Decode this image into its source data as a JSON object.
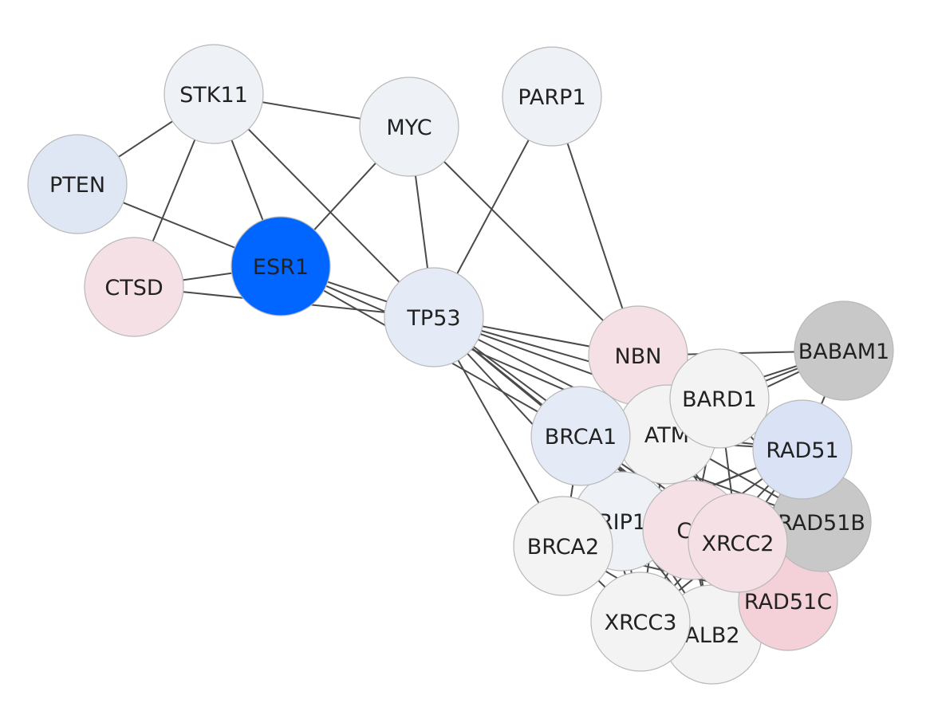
{
  "network": {
    "nodes": [
      {
        "id": "STK11",
        "label": "STK11",
        "color": "#eef1f6"
      },
      {
        "id": "MYC",
        "label": "MYC",
        "color": "#eef1f6"
      },
      {
        "id": "PARP1",
        "label": "PARP1",
        "color": "#eef1f6"
      },
      {
        "id": "PTEN",
        "label": "PTEN",
        "color": "#dfe7f5"
      },
      {
        "id": "CTSD",
        "label": "CTSD",
        "color": "#f4e0e5"
      },
      {
        "id": "ESR1",
        "label": "ESR1",
        "color": "#0066ff"
      },
      {
        "id": "TP53",
        "label": "TP53",
        "color": "#e5ebf6"
      },
      {
        "id": "PALB2",
        "label": "ALB2",
        "color": "#f3f3f4"
      },
      {
        "id": "XRCC3",
        "label": "XRCC3",
        "color": "#f3f3f4"
      },
      {
        "id": "RAD51C",
        "label": "RAD51C",
        "color": "#f4d1d9"
      },
      {
        "id": "RAD51B",
        "label": "RAD51B",
        "color": "#c8c8c8"
      },
      {
        "id": "BABAM1",
        "label": "BABAM1",
        "color": "#c8c8c8"
      },
      {
        "id": "NBN",
        "label": "NBN",
        "color": "#f4e0e5"
      },
      {
        "id": "ATM",
        "label": "ATM",
        "color": "#f3f3f4"
      },
      {
        "id": "BRIP1",
        "label": "RIP1",
        "color": "#eef1f6"
      },
      {
        "id": "CHEK2",
        "label": "CH",
        "color": "#f4e0e5"
      },
      {
        "id": "BRCA1",
        "label": "BRCA1",
        "color": "#e5ebf6"
      },
      {
        "id": "BARD1",
        "label": "BARD1",
        "color": "#f3f3f4"
      },
      {
        "id": "RAD51",
        "label": "RAD51",
        "color": "#d9e3f5"
      },
      {
        "id": "BRCA2",
        "label": "BRCA2",
        "color": "#f3f3f4"
      },
      {
        "id": "XRCC2",
        "label": "XRCC2",
        "color": "#f4e0e5"
      }
    ],
    "edges": [
      [
        "STK11",
        "PTEN"
      ],
      [
        "STK11",
        "MYC"
      ],
      [
        "STK11",
        "CTSD"
      ],
      [
        "STK11",
        "ESR1"
      ],
      [
        "STK11",
        "TP53"
      ],
      [
        "PTEN",
        "ESR1"
      ],
      [
        "MYC",
        "ESR1"
      ],
      [
        "MYC",
        "TP53"
      ],
      [
        "MYC",
        "NBN"
      ],
      [
        "PARP1",
        "TP53"
      ],
      [
        "PARP1",
        "NBN"
      ],
      [
        "CTSD",
        "ESR1"
      ],
      [
        "CTSD",
        "TP53"
      ],
      [
        "ESR1",
        "TP53"
      ],
      [
        "ESR1",
        "BRCA1"
      ],
      [
        "ESR1",
        "ATM"
      ],
      [
        "TP53",
        "NBN"
      ],
      [
        "TP53",
        "BRCA1"
      ],
      [
        "TP53",
        "ATM"
      ],
      [
        "TP53",
        "BRIP1"
      ],
      [
        "TP53",
        "CHEK2"
      ],
      [
        "TP53",
        "BRCA2"
      ],
      [
        "TP53",
        "BARD1"
      ],
      [
        "TP53",
        "RAD51"
      ],
      [
        "TP53",
        "XRCC2"
      ],
      [
        "NBN",
        "BABAM1"
      ],
      [
        "NBN",
        "ATM"
      ],
      [
        "NBN",
        "BRCA1"
      ],
      [
        "NBN",
        "BARD1"
      ],
      [
        "NBN",
        "RAD51"
      ],
      [
        "BABAM1",
        "BARD1"
      ],
      [
        "BABAM1",
        "BRCA1"
      ],
      [
        "BABAM1",
        "RAD51"
      ],
      [
        "BABAM1",
        "ATM"
      ],
      [
        "ATM",
        "BRCA1"
      ],
      [
        "ATM",
        "BARD1"
      ],
      [
        "ATM",
        "RAD51"
      ],
      [
        "ATM",
        "CHEK2"
      ],
      [
        "ATM",
        "BRIP1"
      ],
      [
        "ATM",
        "XRCC2"
      ],
      [
        "ATM",
        "RAD51B"
      ],
      [
        "ATM",
        "RAD51C"
      ],
      [
        "ATM",
        "XRCC3"
      ],
      [
        "ATM",
        "PALB2"
      ],
      [
        "BRCA1",
        "BARD1"
      ],
      [
        "BRCA1",
        "RAD51"
      ],
      [
        "BRCA1",
        "CHEK2"
      ],
      [
        "BRCA1",
        "BRIP1"
      ],
      [
        "BRCA1",
        "BRCA2"
      ],
      [
        "BRCA1",
        "PALB2"
      ],
      [
        "BRCA1",
        "XRCC3"
      ],
      [
        "BRCA1",
        "RAD51C"
      ],
      [
        "BRCA1",
        "XRCC2"
      ],
      [
        "BRCA1",
        "RAD51B"
      ],
      [
        "BARD1",
        "RAD51"
      ],
      [
        "BARD1",
        "CHEK2"
      ],
      [
        "BARD1",
        "XRCC2"
      ],
      [
        "BARD1",
        "RAD51B"
      ],
      [
        "RAD51",
        "RAD51B"
      ],
      [
        "RAD51",
        "RAD51C"
      ],
      [
        "RAD51",
        "XRCC2"
      ],
      [
        "RAD51",
        "XRCC3"
      ],
      [
        "RAD51",
        "BRCA2"
      ],
      [
        "RAD51",
        "PALB2"
      ],
      [
        "RAD51",
        "CHEK2"
      ],
      [
        "RAD51",
        "BRIP1"
      ],
      [
        "BRIP1",
        "BRCA2"
      ],
      [
        "BRIP1",
        "CHEK2"
      ],
      [
        "BRIP1",
        "XRCC3"
      ],
      [
        "BRIP1",
        "PALB2"
      ],
      [
        "BRCA2",
        "PALB2"
      ],
      [
        "BRCA2",
        "XRCC3"
      ],
      [
        "BRCA2",
        "RAD51C"
      ],
      [
        "BRCA2",
        "XRCC2"
      ],
      [
        "BRCA2",
        "CHEK2"
      ],
      [
        "CHEK2",
        "XRCC2"
      ],
      [
        "CHEK2",
        "RAD51C"
      ],
      [
        "CHEK2",
        "PALB2"
      ],
      [
        "CHEK2",
        "XRCC3"
      ],
      [
        "XRCC2",
        "RAD51C"
      ],
      [
        "XRCC2",
        "RAD51B"
      ],
      [
        "XRCC2",
        "PALB2"
      ],
      [
        "XRCC2",
        "XRCC3"
      ],
      [
        "RAD51B",
        "RAD51C"
      ],
      [
        "XRCC3",
        "RAD51C"
      ],
      [
        "XRCC3",
        "PALB2"
      ],
      [
        "PALB2",
        "RAD51C"
      ]
    ]
  }
}
